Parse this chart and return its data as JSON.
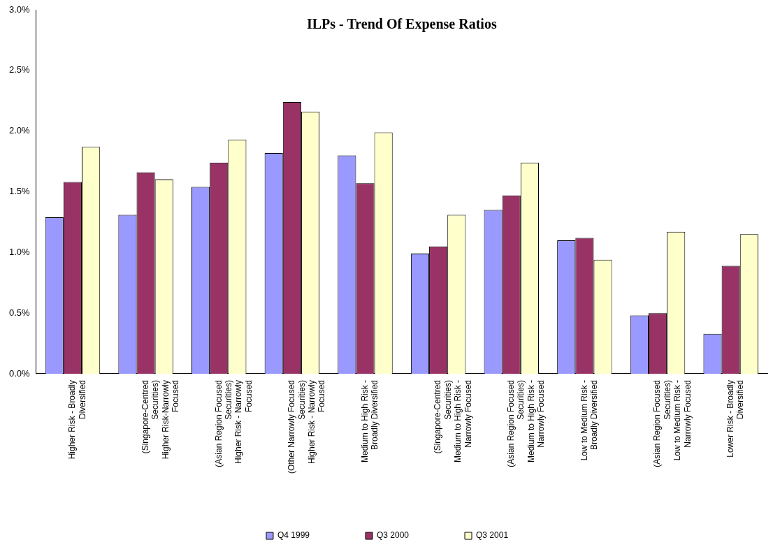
{
  "chart_data": {
    "type": "bar",
    "title": "ILPs - Trend Of Expense Ratios",
    "categories": [
      "Higher Risk - Broadly\nDiversified",
      "(Singapore-Centred\nSecurities)\nHigher Risk-Narrowly\nFocused",
      "(Asian Region Focused\nSecurities)\nHigher Risk - Narrowly\nFocused",
      "(Other Narrowly Focused\nSecurities)\nHigher Risk - Narrowly\nFocused",
      "Medium to High Risk -\nBroadly Diversified",
      "(Singapore-Centred\nSecurities)\nMedium to High Risk -\nNarrowly Focused",
      "(Asian Region Focused\nSecurities)\nMedium to High Risk -\nNarrowly Focused",
      "Low to Medium Risk -\nBroadly Diversified",
      "(Asian Region Focused\nSecurities)\nLow to Medium Risk -\nNarrowly Focused",
      "Lower Risk - Broadly\nDiversified"
    ],
    "series": [
      {
        "name": "Q4 1999",
        "color": "#9999ff",
        "values": [
          1.29,
          1.31,
          1.54,
          1.82,
          1.8,
          0.99,
          1.35,
          1.1,
          0.48,
          0.33
        ]
      },
      {
        "name": "Q3 2000",
        "color": "#993366",
        "values": [
          1.58,
          1.66,
          1.74,
          2.24,
          1.57,
          1.05,
          1.47,
          1.12,
          0.5,
          0.89
        ]
      },
      {
        "name": "Q3 2001",
        "color": "#ffffcc",
        "values": [
          1.87,
          1.6,
          1.93,
          2.16,
          1.99,
          1.31,
          1.74,
          0.94,
          1.17,
          1.15
        ]
      }
    ],
    "ylim": [
      0,
      3
    ],
    "yticks": [
      {
        "value": 0,
        "label": "0.0%"
      },
      {
        "value": 0.5,
        "label": "0.5%"
      },
      {
        "value": 1,
        "label": "1.0%"
      },
      {
        "value": 1.5,
        "label": "1.5%"
      },
      {
        "value": 2,
        "label": "2.0%"
      },
      {
        "value": 2.5,
        "label": "2.5%"
      },
      {
        "value": 3,
        "label": "3.0%"
      }
    ],
    "grid": false,
    "legend": "bottom"
  }
}
